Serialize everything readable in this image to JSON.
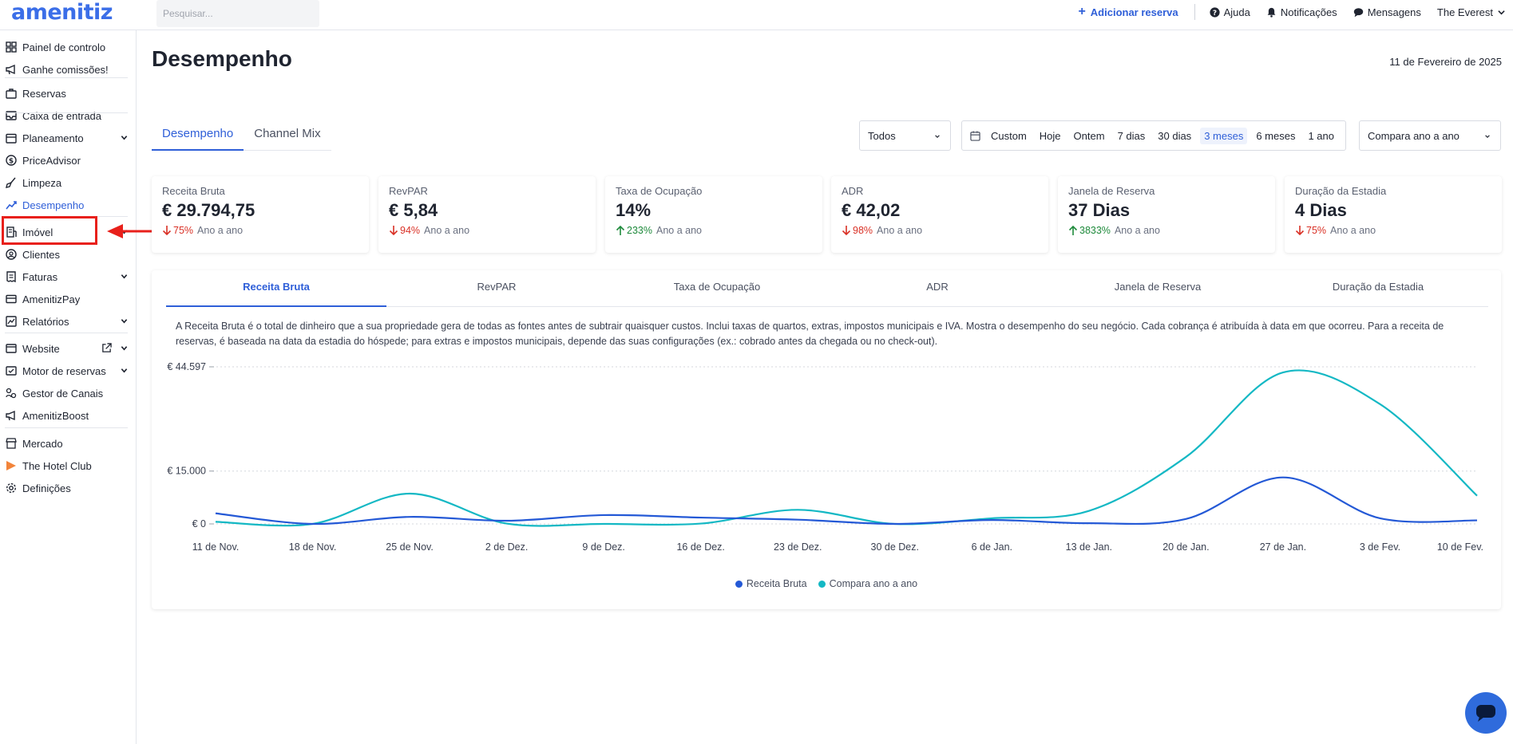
{
  "brand": {
    "logo": "amenitiz",
    "accent": "#2f5fd8"
  },
  "search": {
    "placeholder": "Pesquisar..."
  },
  "topbar": {
    "add_reservation": "Adicionar reserva",
    "help": "Ajuda",
    "notifications": "Notificações",
    "messages": "Mensagens",
    "hotel": "The Everest"
  },
  "sidebar": {
    "items": [
      {
        "label": "Painel de controlo",
        "icon": "dashboard-icon"
      },
      {
        "label": "Ganhe comissões!",
        "icon": "megaphone-icon"
      },
      {
        "label": "Reservas",
        "icon": "suitcase-icon"
      },
      {
        "label": "Caixa de entrada",
        "icon": "inbox-icon"
      },
      {
        "label": "Planeamento",
        "icon": "calendar-icon"
      },
      {
        "label": "PriceAdvisor",
        "icon": "dollar-icon"
      },
      {
        "label": "Limpeza",
        "icon": "broom-icon"
      },
      {
        "label": "Desempenho",
        "icon": "trend-icon"
      },
      {
        "label": "Imóvel",
        "icon": "building-icon"
      },
      {
        "label": "Clientes",
        "icon": "users-icon"
      },
      {
        "label": "Faturas",
        "icon": "invoice-icon"
      },
      {
        "label": "AmenitizPay",
        "icon": "card-icon"
      },
      {
        "label": "Relatórios",
        "icon": "report-icon"
      },
      {
        "label": "Website",
        "icon": "browser-icon"
      },
      {
        "label": "Motor de reservas",
        "icon": "engine-icon"
      },
      {
        "label": "Gestor de Canais",
        "icon": "channels-icon"
      },
      {
        "label": "AmenitizBoost",
        "icon": "megaphone-icon"
      },
      {
        "label": "Mercado",
        "icon": "store-icon"
      },
      {
        "label": "The Hotel Club",
        "icon": "play-icon"
      },
      {
        "label": "Definições",
        "icon": "gear-icon"
      }
    ]
  },
  "page": {
    "title": "Desempenho",
    "date": "11 de Fevereiro de 2025"
  },
  "tabs": [
    "Desempenho",
    "Channel Mix"
  ],
  "filters": {
    "channel": "Todos",
    "ranges": [
      "Custom",
      "Hoje",
      "Ontem",
      "7 dias",
      "30 dias",
      "3 meses",
      "6 meses",
      "1 ano"
    ],
    "active_range": "3 meses",
    "compare": "Compara ano a ano"
  },
  "kpis": [
    {
      "label": "Receita Bruta",
      "value": "€ 29.794,75",
      "change": "75%",
      "direction": "down",
      "note": "Ano a ano"
    },
    {
      "label": "RevPAR",
      "value": "€ 5,84",
      "change": "94%",
      "direction": "down",
      "note": "Ano a ano"
    },
    {
      "label": "Taxa de Ocupação",
      "value": "14%",
      "change": "233%",
      "direction": "up",
      "note": "Ano a ano"
    },
    {
      "label": "ADR",
      "value": "€ 42,02",
      "change": "98%",
      "direction": "down",
      "note": "Ano a ano"
    },
    {
      "label": "Janela de Reserva",
      "value": "37 Dias",
      "change": "3833%",
      "direction": "up",
      "note": "Ano a ano"
    },
    {
      "label": "Duração da Estadia",
      "value": "4 Dias",
      "change": "75%",
      "direction": "down",
      "note": "Ano a ano"
    }
  ],
  "chart_tabs": [
    "Receita Bruta",
    "RevPAR",
    "Taxa de Ocupação",
    "ADR",
    "Janela de Reserva",
    "Duração da Estadia"
  ],
  "chart_description": "A Receita Bruta é o total de dinheiro que a sua propriedade gera de todas as fontes antes de subtrair quaisquer custos. Inclui taxas de quartos, extras, impostos municipais e IVA. Mostra o desempenho do seu negócio. Cada cobrança é atribuída à data em que ocorreu. Para a receita de reservas, é baseada na data da estadia do hóspede; para extras e impostos municipais, depende das suas configurações (ex.: cobrado antes da chegada ou no check-out).",
  "chart_data": {
    "type": "line",
    "x": [
      "11 de Nov.",
      "18 de Nov.",
      "25 de Nov.",
      "2 de Dez.",
      "9 de Dez.",
      "16 de Dez.",
      "23 de Dez.",
      "30 de Dez.",
      "6 de Jan.",
      "13 de Jan.",
      "20 de Jan.",
      "27 de Jan.",
      "3 de Fev.",
      "10 de Fev."
    ],
    "y_ticks": [
      0,
      15000,
      44597
    ],
    "y_tick_labels": [
      "€ 0",
      "€ 15.000",
      "€ 44.597"
    ],
    "ylim": [
      0,
      44597
    ],
    "grid": true,
    "legend": "bottom-center",
    "series": [
      {
        "name": "Receita Bruta",
        "color": "#2459d6",
        "values": [
          3000,
          0,
          2000,
          900,
          2500,
          1800,
          1200,
          0,
          1100,
          200,
          1400,
          13200,
          1600,
          1000
        ]
      },
      {
        "name": "Compara ano a ano",
        "color": "#14b8c4",
        "values": [
          600,
          0,
          8600,
          100,
          0,
          100,
          4000,
          0,
          1600,
          3700,
          19000,
          43000,
          34000,
          8000
        ]
      }
    ]
  }
}
